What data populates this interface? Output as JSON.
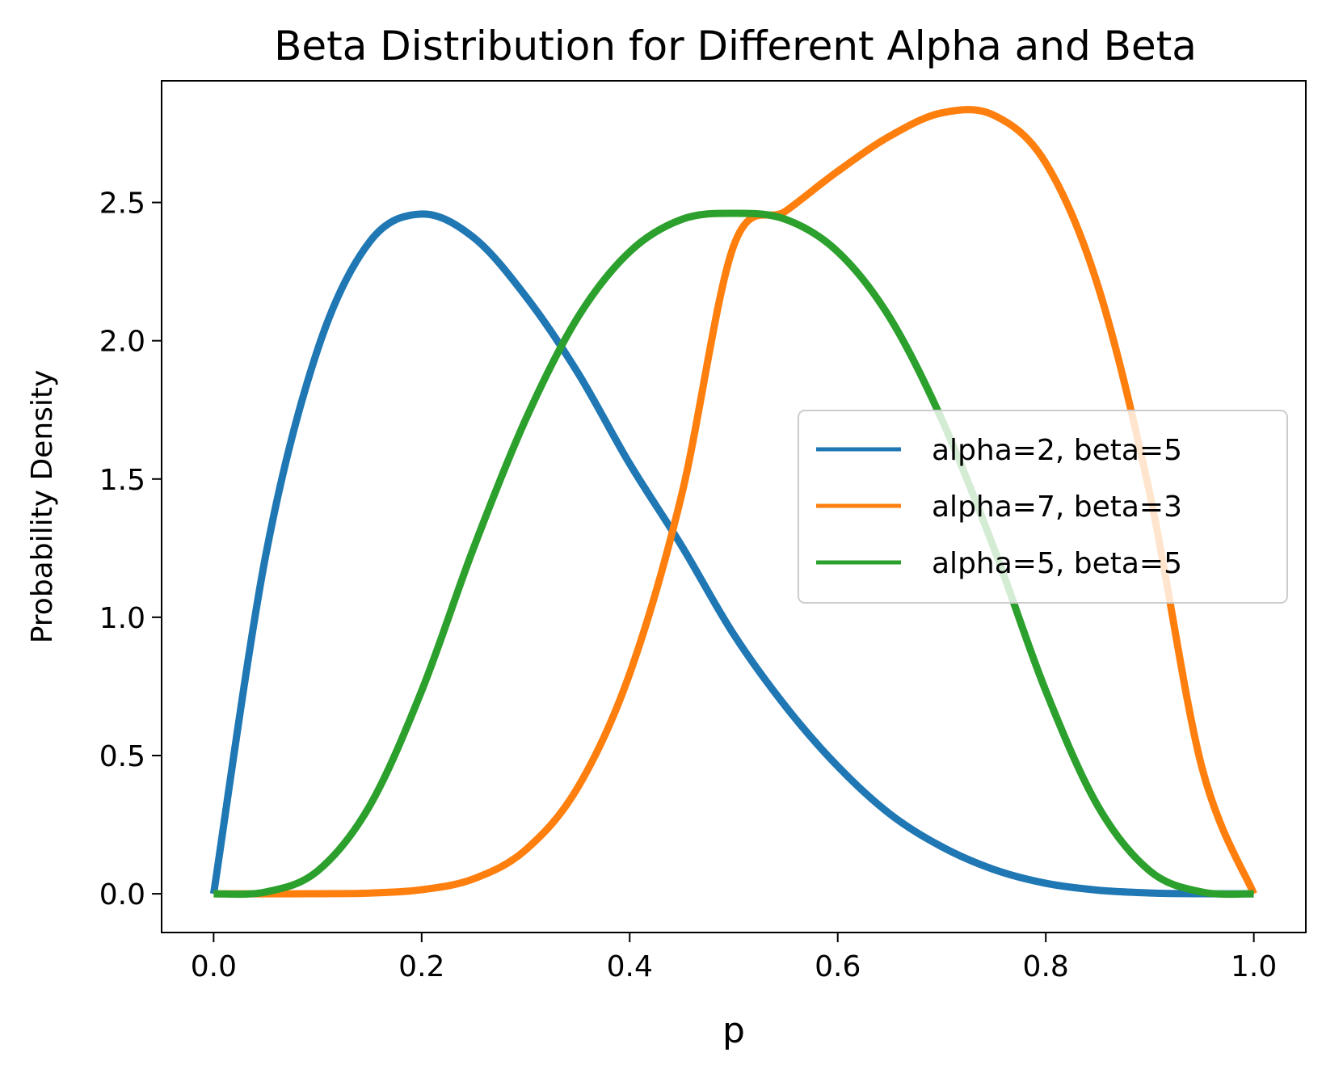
{
  "chart_data": {
    "type": "line",
    "title": "Beta Distribution for Different Alpha and Beta",
    "xlabel": "p",
    "ylabel": "Probability Density",
    "xlim": [
      -0.05,
      1.05
    ],
    "ylim": [
      -0.14,
      2.94
    ],
    "xticks": [
      0.0,
      0.2,
      0.4,
      0.6,
      0.8,
      1.0
    ],
    "xtick_labels": [
      "0.0",
      "0.2",
      "0.4",
      "0.6",
      "0.8",
      "1.0"
    ],
    "yticks": [
      0.0,
      0.5,
      1.0,
      1.5,
      2.0,
      2.5
    ],
    "ytick_labels": [
      "0.0",
      "0.5",
      "1.0",
      "1.5",
      "2.0",
      "2.5"
    ],
    "grid": false,
    "legend_position": "center-right",
    "series": [
      {
        "name": "alpha=2, beta=5",
        "color": "#1f77b4",
        "x": [
          0.0,
          0.05,
          0.1,
          0.15,
          0.2,
          0.25,
          0.3,
          0.35,
          0.4,
          0.45,
          0.5,
          0.55,
          0.6,
          0.65,
          0.7,
          0.75,
          0.8,
          0.85,
          0.9,
          0.95,
          1.0
        ],
        "y": [
          0.0,
          1.222,
          1.968,
          2.358,
          2.458,
          2.373,
          2.161,
          1.885,
          1.555,
          1.258,
          0.938,
          0.677,
          0.461,
          0.289,
          0.17,
          0.088,
          0.038,
          0.013,
          0.003,
          0.0002,
          0.0
        ]
      },
      {
        "name": "alpha=7, beta=3",
        "color": "#ff7f0e",
        "x": [
          0.0,
          0.05,
          0.1,
          0.15,
          0.2,
          0.25,
          0.3,
          0.35,
          0.4,
          0.45,
          0.5,
          0.55,
          0.6,
          0.65,
          0.7,
          0.75,
          0.8,
          0.85,
          0.9,
          0.95,
          1.0
        ],
        "y": [
          0.0,
          0.0,
          0.00029,
          0.0027,
          0.0147,
          0.0541,
          0.1588,
          0.384,
          0.7963,
          1.4432,
          2.3438,
          2.469,
          2.6127,
          2.7398,
          2.824,
          2.8157,
          2.6424,
          2.2003,
          1.4467,
          0.4583,
          0.0
        ]
      },
      {
        "name": "alpha=5, beta=5",
        "color": "#2ca02c",
        "x": [
          0.0,
          0.05,
          0.1,
          0.15,
          0.2,
          0.25,
          0.3,
          0.35,
          0.4,
          0.45,
          0.5,
          0.55,
          0.6,
          0.65,
          0.7,
          0.75,
          0.8,
          0.85,
          0.9,
          0.95,
          1.0
        ],
        "y": [
          0.0,
          0.0064,
          0.0827,
          0.3181,
          0.734,
          1.2514,
          1.7153,
          2.0838,
          2.3221,
          2.4387,
          2.4609,
          2.4387,
          2.3221,
          2.0838,
          1.7153,
          1.2514,
          0.734,
          0.3181,
          0.0827,
          0.0064,
          0.0
        ]
      }
    ]
  }
}
